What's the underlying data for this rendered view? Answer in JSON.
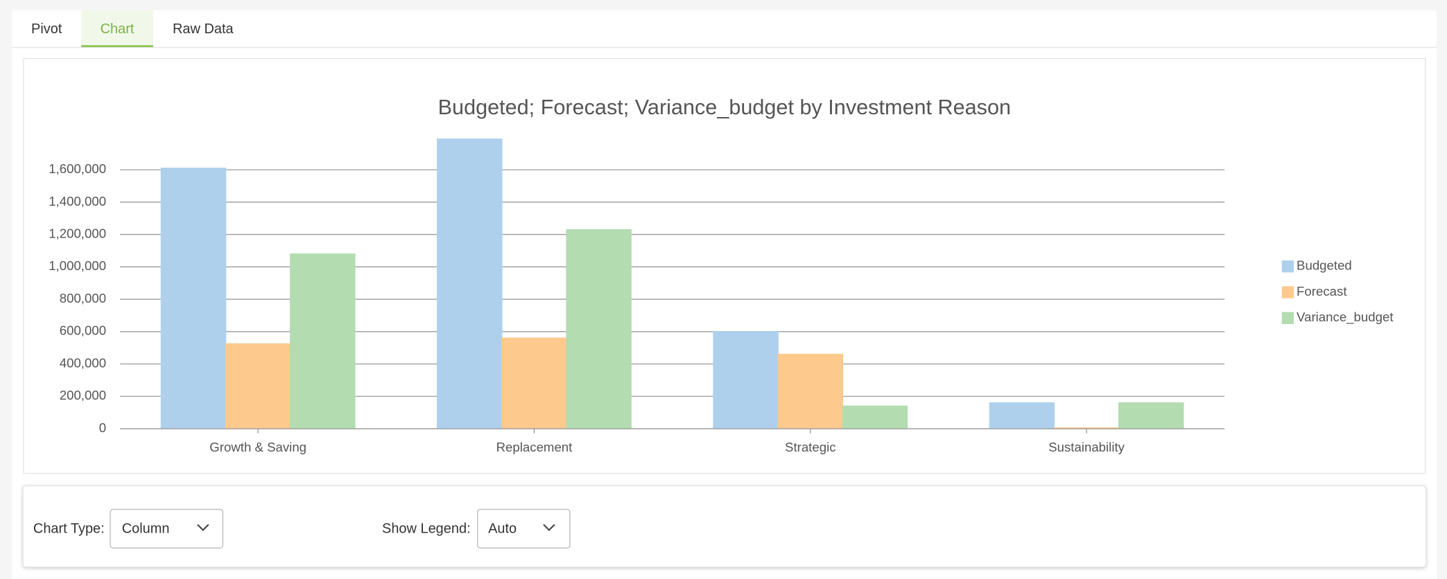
{
  "tabs": {
    "items": [
      "Pivot",
      "Chart",
      "Raw Data"
    ],
    "active": 1
  },
  "chart_data": {
    "type": "bar",
    "title": "Budgeted; Forecast; Variance_budget by Investment Reason",
    "categories": [
      "Growth & Saving",
      "Replacement",
      "Strategic",
      "Sustainability"
    ],
    "series": [
      {
        "name": "Budgeted",
        "color": "#aed0ec",
        "values": [
          1610000,
          1790000,
          600000,
          160000
        ]
      },
      {
        "name": "Forecast",
        "color": "#fdc98c",
        "values": [
          525000,
          560000,
          460000,
          5000
        ]
      },
      {
        "name": "Variance_budget",
        "color": "#b3dcb1",
        "values": [
          1080000,
          1230000,
          140000,
          160000
        ]
      }
    ],
    "ylim": [
      0,
      1800000
    ],
    "yticks": [
      0,
      {
        "value": 200000,
        "label": "200,000"
      },
      {
        "value": 400000,
        "label": "400,000"
      },
      {
        "value": 600000,
        "label": "600,000"
      },
      {
        "value": 800000,
        "label": "800,000"
      },
      {
        "value": 1000000,
        "label": "1,000,000"
      },
      {
        "value": 1200000,
        "label": "1,200,000"
      },
      {
        "value": 1400000,
        "label": "1,400,000"
      },
      {
        "value": 1600000,
        "label": "1,600,000"
      }
    ],
    "grid": true,
    "legend": "right"
  },
  "controls": {
    "chart_type": {
      "label": "Chart Type:",
      "value": "Column"
    },
    "show_legend": {
      "label": "Show Legend:",
      "value": "Auto"
    }
  }
}
